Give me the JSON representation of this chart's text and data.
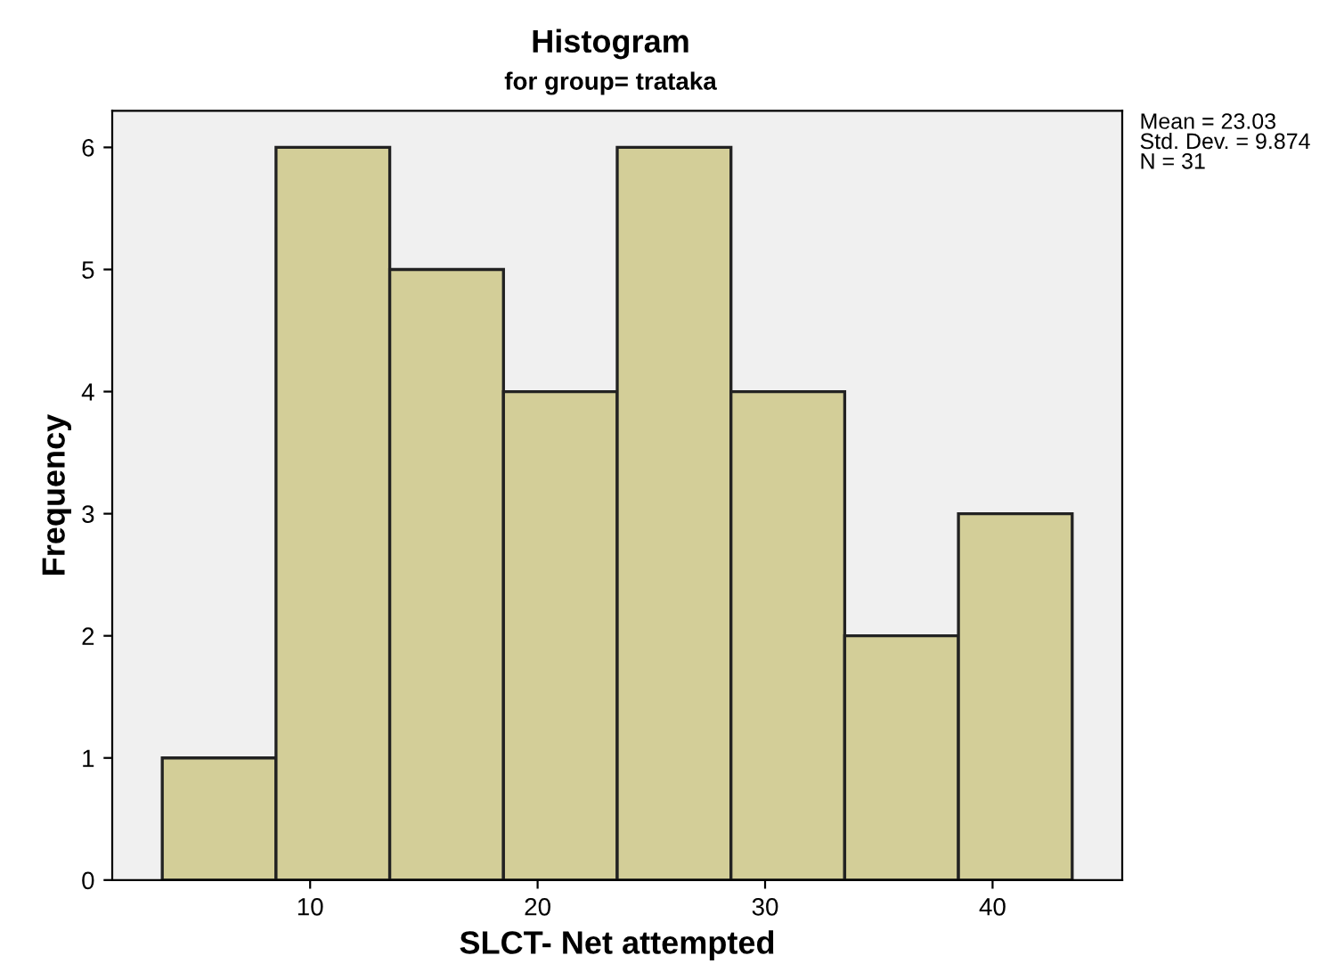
{
  "chart_data": {
    "type": "histogram",
    "title": "Histogram",
    "subtitle": "for group= trataka",
    "xlabel": "SLCT- Net attempted",
    "ylabel": "Frequency",
    "bins": [
      3.5,
      8.5,
      13.5,
      18.5,
      23.5,
      28.5,
      33.5,
      38.5,
      43.5
    ],
    "values": [
      1,
      6,
      5,
      4,
      6,
      4,
      2,
      3
    ],
    "color": "#d3ce98",
    "xlim": [
      1.3,
      45.7
    ],
    "xticks": [
      10,
      20,
      30,
      40
    ],
    "ylim": [
      0,
      6.3
    ],
    "yticks": [
      0,
      1,
      2,
      3,
      4,
      5,
      6
    ],
    "grid": false,
    "annotations": [
      "Mean = 23.03\nStd. Dev. = 9.874\nN = 31"
    ]
  }
}
